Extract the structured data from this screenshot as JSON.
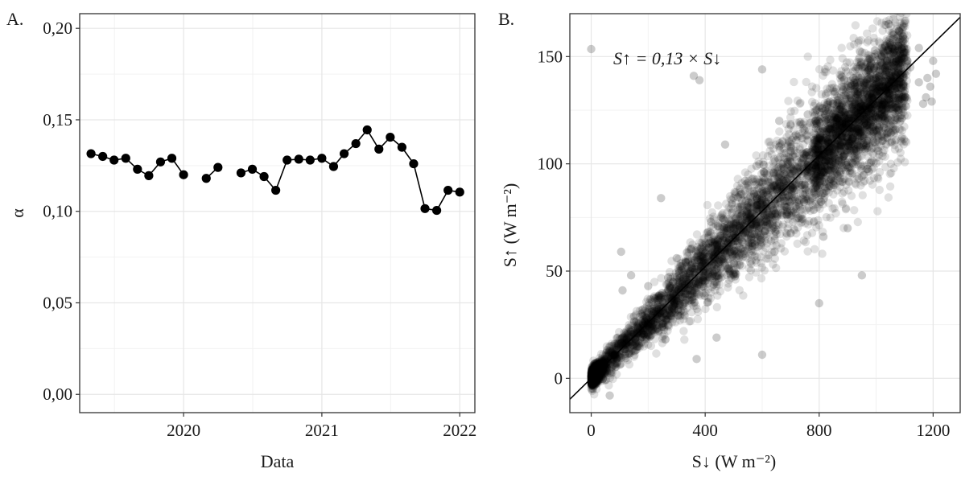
{
  "figure": {
    "panel_a_label": "A.",
    "panel_b_label": "B."
  },
  "chart_data": [
    {
      "type": "line",
      "panel": "A.",
      "xlabel": "Data",
      "ylabel": "α",
      "x_tick_labels": [
        "2020",
        "2021",
        "2022"
      ],
      "y_tick_labels": [
        "0,00",
        "0,05",
        "0,10",
        "0,15",
        "0,20"
      ],
      "xlim": [
        "2019-04-01",
        "2022-02-10"
      ],
      "ylim": [
        -0.01,
        0.208
      ],
      "grid": true,
      "marker": "filled circle",
      "line_color": "#000000",
      "segments": [
        {
          "x": [
            "2019-05-01",
            "2019-06-01",
            "2019-07-01",
            "2019-08-01",
            "2019-09-01",
            "2019-10-01",
            "2019-11-01",
            "2019-12-01",
            "2020-01-01"
          ],
          "y": [
            0.1315,
            0.13,
            0.128,
            0.129,
            0.123,
            0.1195,
            0.127,
            0.129,
            0.12
          ]
        },
        {
          "x": [
            "2020-03-01",
            "2020-04-01"
          ],
          "y": [
            0.118,
            0.124
          ]
        },
        {
          "x": [
            "2020-06-01",
            "2020-07-01",
            "2020-08-01",
            "2020-09-01",
            "2020-10-01",
            "2020-11-01",
            "2020-12-01",
            "2021-01-01",
            "2021-02-01",
            "2021-03-01",
            "2021-04-01",
            "2021-05-01",
            "2021-06-01",
            "2021-07-01",
            "2021-08-01",
            "2021-09-01",
            "2021-10-01",
            "2021-11-01",
            "2021-12-01",
            "2022-01-01"
          ],
          "y": [
            0.121,
            0.123,
            0.119,
            0.1115,
            0.128,
            0.1285,
            0.128,
            0.129,
            0.1245,
            0.1315,
            0.137,
            0.1445,
            0.134,
            0.1405,
            0.135,
            0.126,
            0.1015,
            0.1005,
            0.1115,
            0.1105
          ]
        }
      ]
    },
    {
      "type": "scatter",
      "panel": "B.",
      "xlabel": "S↓ (W m⁻²)",
      "ylabel": "S↑ (W m⁻²)",
      "x_tick_labels": [
        "0",
        "400",
        "800",
        "1200"
      ],
      "y_tick_labels": [
        "0",
        "50",
        "100",
        "150"
      ],
      "xlim": [
        -75,
        1295
      ],
      "ylim": [
        -16,
        170
      ],
      "grid": true,
      "point_color": "#000000",
      "point_opacity": 0.12,
      "annotation": "S↑ = 0,13 × S↓",
      "fit_line": {
        "slope": 0.13,
        "intercept": 0
      },
      "point_cloud_note_free": true,
      "points": [
        [
          0,
          153.5
        ],
        [
          360,
          141
        ],
        [
          380,
          139
        ],
        [
          600,
          144
        ],
        [
          1080,
          162
        ],
        [
          1100,
          158
        ],
        [
          1150,
          154
        ],
        [
          1200,
          148
        ],
        [
          1180,
          140
        ],
        [
          1175,
          131
        ],
        [
          1165,
          128
        ],
        [
          470,
          109
        ],
        [
          660,
          108
        ],
        [
          245,
          84
        ],
        [
          660,
          120
        ],
        [
          700,
          118
        ],
        [
          1150,
          138
        ],
        [
          1210,
          142
        ],
        [
          105,
          59
        ],
        [
          140,
          48
        ],
        [
          110,
          41
        ],
        [
          900,
          70
        ],
        [
          815,
          66
        ],
        [
          370,
          9
        ],
        [
          600,
          11
        ],
        [
          440,
          19
        ],
        [
          800,
          35
        ],
        [
          950,
          48
        ],
        [
          65,
          -8
        ],
        [
          1190,
          136
        ],
        [
          1195,
          129
        ],
        [
          1120,
          145
        ],
        [
          1050,
          151
        ],
        [
          980,
          146
        ],
        [
          1020,
          154
        ],
        [
          920,
          140
        ],
        [
          880,
          136
        ],
        [
          850,
          128
        ],
        [
          1000,
          140
        ],
        [
          1060,
          138
        ],
        [
          1100,
          134
        ],
        [
          720,
          111
        ],
        [
          760,
          123
        ],
        [
          540,
          92
        ],
        [
          580,
          99
        ],
        [
          300,
          56
        ],
        [
          270,
          47
        ],
        [
          200,
          43
        ],
        [
          180,
          29
        ],
        [
          150,
          21
        ],
        [
          420,
          73
        ],
        [
          460,
          60
        ],
        [
          500,
          72
        ],
        [
          350,
          60
        ],
        [
          320,
          38
        ],
        [
          250,
          24
        ],
        [
          640,
          96
        ],
        [
          680,
          80
        ],
        [
          700,
          90
        ]
      ]
    }
  ]
}
